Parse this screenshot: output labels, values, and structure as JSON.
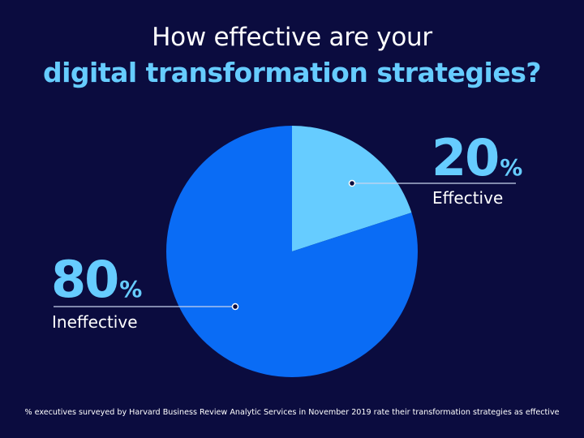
{
  "title": {
    "line1": "How effective are your",
    "line2": "digital transformation strategies?"
  },
  "chart_data": {
    "type": "pie",
    "slices": [
      {
        "label": "Effective",
        "value": 20,
        "display": "20",
        "unit": "%",
        "color": "#66ccff"
      },
      {
        "label": "Ineffective",
        "value": 80,
        "display": "80",
        "unit": "%",
        "color": "#0a6cf5"
      }
    ]
  },
  "footnote": "% executives surveyed by Harvard Business Review Analytic Services in November 2019 rate their transformation strategies as effective"
}
